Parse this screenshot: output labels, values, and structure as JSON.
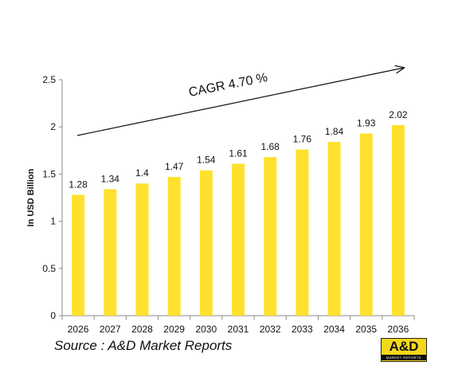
{
  "chart_data": {
    "type": "bar",
    "categories": [
      "2026",
      "2027",
      "2028",
      "2029",
      "2030",
      "2031",
      "2032",
      "2033",
      "2034",
      "2035",
      "2036"
    ],
    "values": [
      1.28,
      1.34,
      1.4,
      1.47,
      1.54,
      1.61,
      1.68,
      1.76,
      1.84,
      1.93,
      2.02
    ],
    "value_labels": [
      "1.28",
      "1.34",
      "1.4",
      "1.47",
      "1.54",
      "1.61",
      "1.68",
      "1.76",
      "1.84",
      "1.93",
      "2.02"
    ],
    "ylabel": "In USD Billion",
    "ylim": [
      0,
      2.5
    ],
    "yticks": [
      "0",
      "0.5",
      "1",
      "1.5",
      "2",
      "2.5"
    ],
    "grid": false,
    "bar_color": "#fde12d",
    "annotation": "CAGR  4.70 %"
  },
  "footer": {
    "source": "Source : A&D Market Reports",
    "logo_text": "A&D",
    "logo_subtext": "MARKET REPORTS"
  }
}
